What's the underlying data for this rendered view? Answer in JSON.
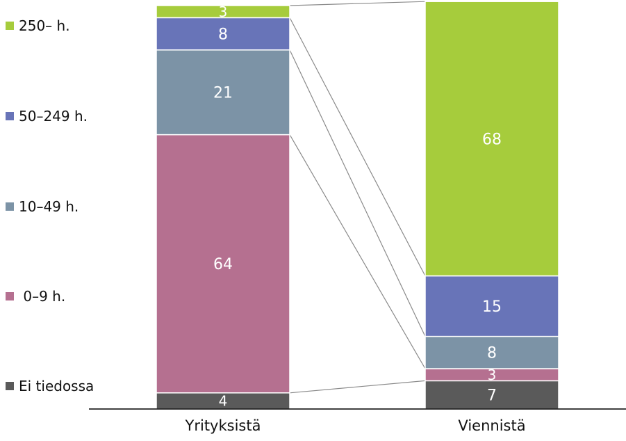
{
  "chart_data": {
    "type": "bar",
    "stacked": true,
    "unit": "%",
    "categories": [
      "Yrityksistä",
      "Viennistä"
    ],
    "series": [
      {
        "name": "Ei tiedossa",
        "color": "#5a5a5a",
        "values": [
          4,
          7
        ]
      },
      {
        "name": " 0–9 h.",
        "color": "#b57090",
        "values": [
          64,
          3
        ]
      },
      {
        "name": "10–49 h.",
        "color": "#7c93a6",
        "values": [
          21,
          8
        ]
      },
      {
        "name": "50–249 h.",
        "color": "#6874b8",
        "values": [
          8,
          15
        ]
      },
      {
        "name": "250– h.",
        "color": "#a6cc3c",
        "values": [
          3,
          68
        ]
      }
    ],
    "legend_position": "left",
    "connector_lines": true,
    "grid": false,
    "ylim": [
      0,
      100
    ]
  }
}
